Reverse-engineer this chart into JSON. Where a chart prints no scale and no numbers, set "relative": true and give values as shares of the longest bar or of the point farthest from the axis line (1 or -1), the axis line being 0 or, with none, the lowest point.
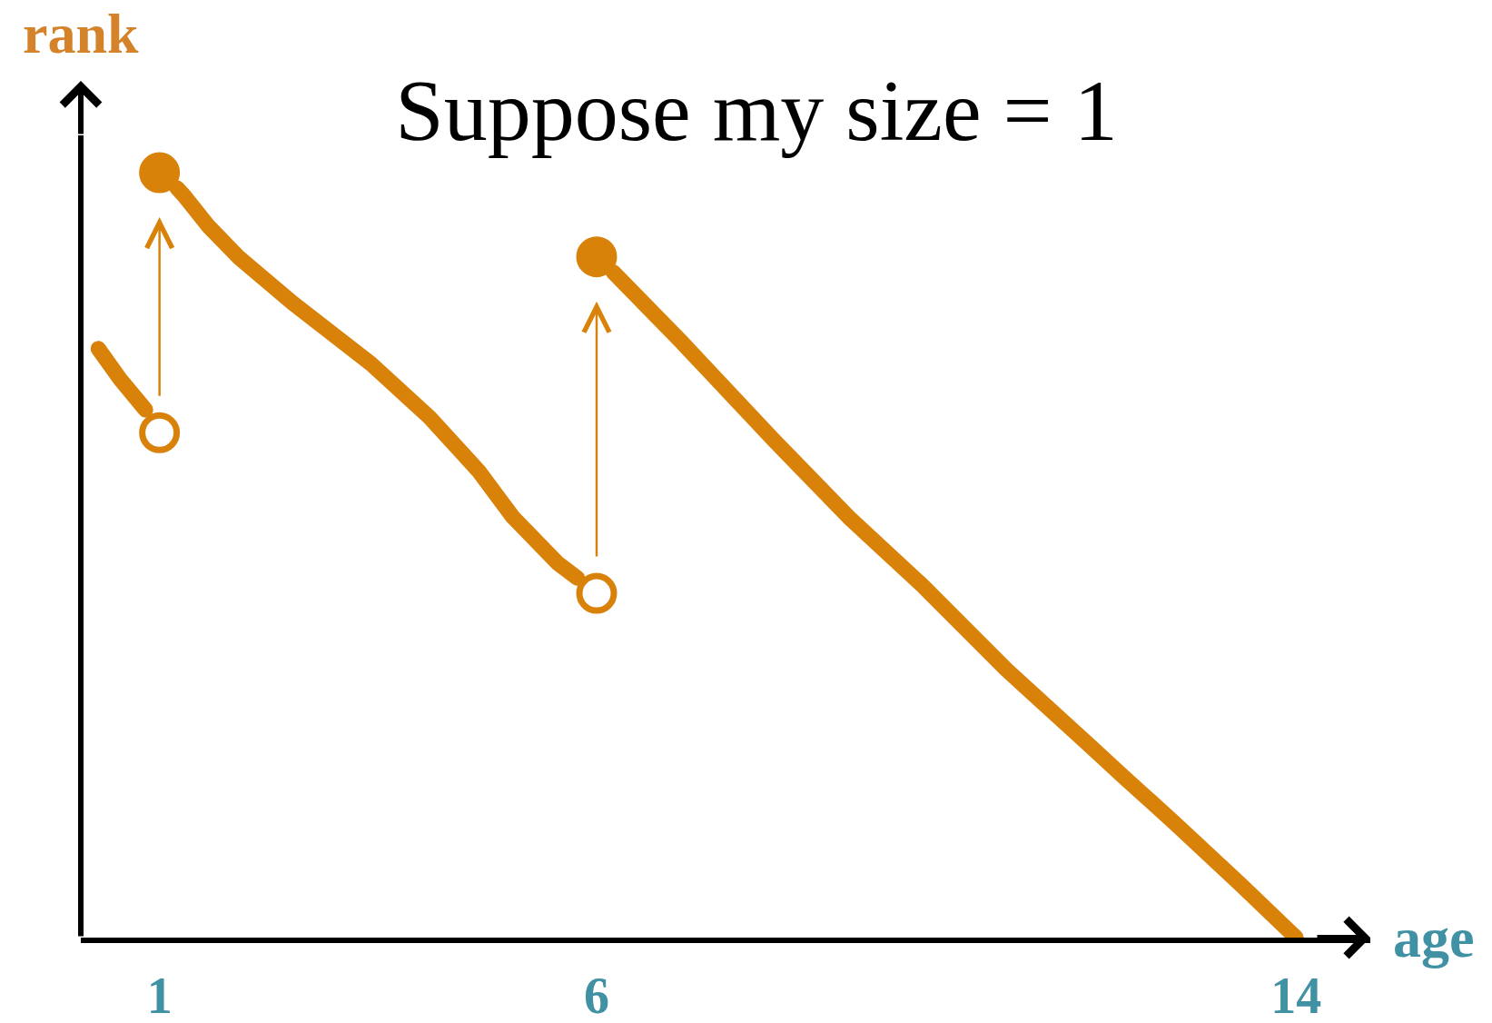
{
  "chart_data": {
    "type": "line",
    "title": "Suppose my size = 1",
    "xlabel": "age",
    "ylabel": "rank",
    "relative": true,
    "xlim": [
      0.1,
      14.85
    ],
    "xticks": [
      1,
      6,
      14
    ],
    "series": [
      {
        "color": "#d9820a",
        "x": [
          0.3,
          0.55,
          0.84
        ],
        "values": [
          0.77,
          0.73,
          0.69
        ]
      },
      {
        "color": "#d9820a",
        "x": [
          1.2,
          1.28,
          1.56,
          1.9,
          2.52,
          3.42,
          4.09,
          4.65,
          5.04,
          5.55,
          5.78
        ],
        "values": [
          0.98,
          0.97,
          0.93,
          0.89,
          0.83,
          0.75,
          0.68,
          0.61,
          0.55,
          0.49,
          0.47
        ]
      },
      {
        "color": "#d9820a",
        "x": [
          6.19,
          6.96,
          8.03,
          8.88,
          9.73,
          10.69,
          11.65,
          12.03,
          12.61,
          13.36,
          14
        ],
        "values": [
          0.87,
          0.78,
          0.65,
          0.55,
          0.46,
          0.35,
          0.25,
          0.21,
          0.15,
          0.07,
          0
        ]
      },
      {
        "type": "scatter",
        "marker": "circle",
        "color": "#d9820a",
        "x": [
          1,
          1,
          6,
          6
        ],
        "values": [
          0.66,
          1,
          0.45,
          0.89
        ]
      }
    ]
  }
}
